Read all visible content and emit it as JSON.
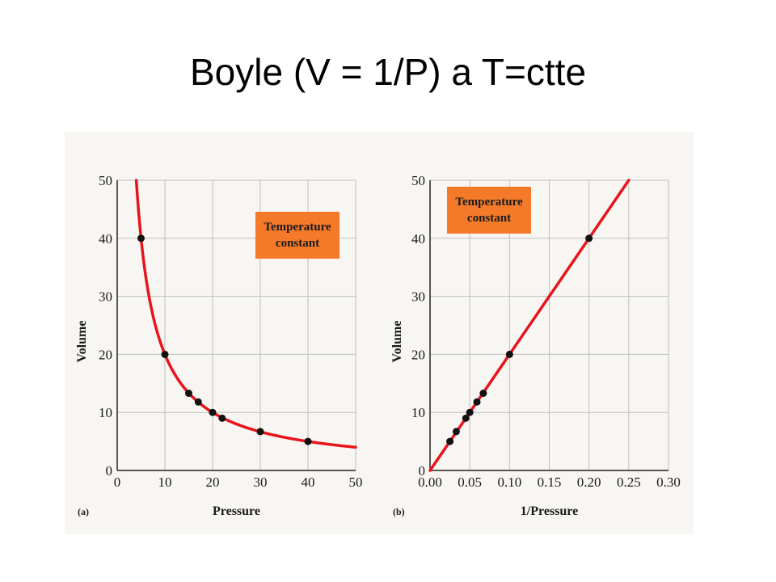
{
  "slide": {
    "title": "Boyle (V = 1/P) a T=ctte"
  },
  "colors": {
    "curve": "#e8141c",
    "point": "#111111",
    "grid": "#bfbfbf",
    "axis": "#222222",
    "box": "#f47a2a",
    "panel": "#f8f6f2"
  },
  "chart_data": [
    {
      "type": "scatter",
      "panel_label": "(a)",
      "xlabel": "Pressure",
      "ylabel": "Volume",
      "xlim": [
        0,
        50
      ],
      "ylim": [
        0,
        50
      ],
      "xticks": [
        "0",
        "10",
        "20",
        "30",
        "40",
        "50"
      ],
      "yticks": [
        "0",
        "10",
        "20",
        "30",
        "40",
        "50"
      ],
      "grid": true,
      "legend": {
        "lines": [
          "Temperature",
          "constant"
        ],
        "placement": "top-right"
      },
      "fit": "V = 200/P",
      "points": {
        "x": [
          5,
          10,
          15,
          17,
          20,
          22,
          30,
          40
        ],
        "y": [
          40,
          20,
          13.3,
          11.8,
          10,
          9,
          6.7,
          5
        ]
      }
    },
    {
      "type": "scatter",
      "panel_label": "(b)",
      "xlabel": "1/Pressure",
      "ylabel": "Volume",
      "xlim": [
        0,
        0.3
      ],
      "ylim": [
        0,
        50
      ],
      "xticks": [
        "0.00",
        "0.05",
        "0.10",
        "0.15",
        "0.20",
        "0.25",
        "0.30"
      ],
      "yticks": [
        "0",
        "10",
        "20",
        "30",
        "40",
        "50"
      ],
      "grid": true,
      "legend": {
        "lines": [
          "Temperature",
          "constant"
        ],
        "placement": "top-left"
      },
      "fit": "V = 200 × (1/P)",
      "points": {
        "x": [
          0.025,
          0.033,
          0.045,
          0.05,
          0.059,
          0.067,
          0.1,
          0.2
        ],
        "y": [
          5,
          6.7,
          9,
          10,
          11.8,
          13.3,
          20,
          40
        ]
      }
    }
  ]
}
